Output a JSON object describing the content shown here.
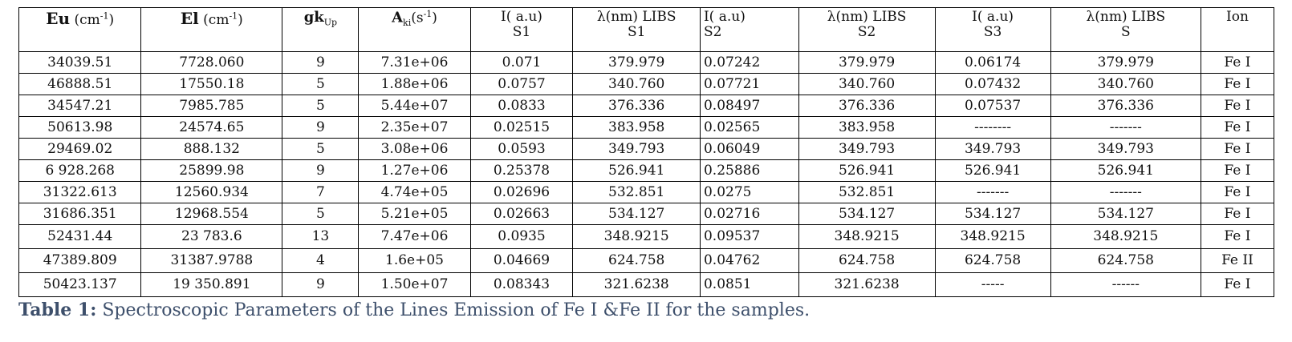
{
  "table": {
    "headers": {
      "eu": {
        "sym": "E",
        "sub": "u",
        "unit": "(cm",
        "exp": "-1",
        "close": ")"
      },
      "el": {
        "sym": "E",
        "sub": "l",
        "unit": "(cm",
        "exp": "-1",
        "close": ")"
      },
      "gk": {
        "sym": "gk",
        "sub": "Up"
      },
      "aki": {
        "sym": "A",
        "sub": "ki",
        "unit": "(s",
        "exp": "-1",
        "close": ")"
      },
      "i1": {
        "line1": "I( a.u)",
        "line2": "S1"
      },
      "l1": {
        "line1": "λ(nm) LIBS",
        "line2": "S1"
      },
      "i2": {
        "line1": "I( a.u)",
        "line2": "S2"
      },
      "l2": {
        "line1": "λ(nm) LIBS",
        "line2": "S2"
      },
      "i3": {
        "line1": "I( a.u)",
        "line2": "S3"
      },
      "l3": {
        "line1": "λ(nm) LIBS",
        "line2": "S"
      },
      "ion": {
        "line1": "Ion"
      }
    },
    "rows": [
      [
        "34039.51",
        "7728.060",
        "9",
        "7.31e+06",
        "0.071",
        "379.979",
        "0.07242",
        "379.979",
        "0.06174",
        "379.979",
        "Fe I"
      ],
      [
        "46888.51",
        "17550.18",
        "5",
        "1.88e+06",
        "0.0757",
        "340.760",
        "0.07721",
        "340.760",
        "0.07432",
        "340.760",
        "Fe I"
      ],
      [
        "34547.21",
        "7985.785",
        "5",
        "5.44e+07",
        "0.0833",
        "376.336",
        "0.08497",
        "376.336",
        "0.07537",
        "376.336",
        "Fe I"
      ],
      [
        "50613.98",
        "24574.65",
        "9",
        "2.35e+07",
        "0.02515",
        "383.958",
        "0.02565",
        "383.958",
        "--------",
        "-------",
        "Fe I"
      ],
      [
        "29469.02",
        "888.132",
        "5",
        "3.08e+06",
        "0.0593",
        "349.793",
        "0.06049",
        "349.793",
        "349.793",
        "349.793",
        "Fe I"
      ],
      [
        "6 928.268",
        "25899.98",
        "9",
        "1.27e+06",
        "0.25378",
        "526.941",
        "0.25886",
        "526.941",
        "526.941",
        "526.941",
        "Fe I"
      ],
      [
        "31322.613",
        "12560.934",
        "7",
        "4.74e+05",
        "0.02696",
        "532.851",
        "0.0275",
        "532.851",
        "-------",
        "-------",
        "Fe I"
      ],
      [
        "31686.351",
        "12968.554",
        "5",
        "5.21e+05",
        "0.02663",
        "534.127",
        "0.02716",
        "534.127",
        "534.127",
        "534.127",
        "Fe I"
      ],
      [
        "52431.44",
        "23 783.6",
        "13",
        "7.47e+06",
        "0.0935",
        "348.9215",
        "0.09537",
        "348.9215",
        "348.9215",
        "348.9215",
        "Fe I"
      ],
      [
        "47389.809",
        "31387.9788",
        "4",
        "1.6e+05",
        "0.04669",
        "624.758",
        "0.04762",
        "624.758",
        "624.758",
        "624.758",
        "Fe II"
      ],
      [
        "50423.137",
        "19 350.891",
        "9",
        "1.50e+07",
        "0.08343",
        "321.6238",
        "0.0851",
        "321.6238",
        "-----",
        "------",
        "Fe I"
      ]
    ]
  },
  "caption": {
    "label": "Table 1:",
    "text": " Spectroscopic Parameters of the Lines Emission of Fe I &Fe II for the samples."
  }
}
